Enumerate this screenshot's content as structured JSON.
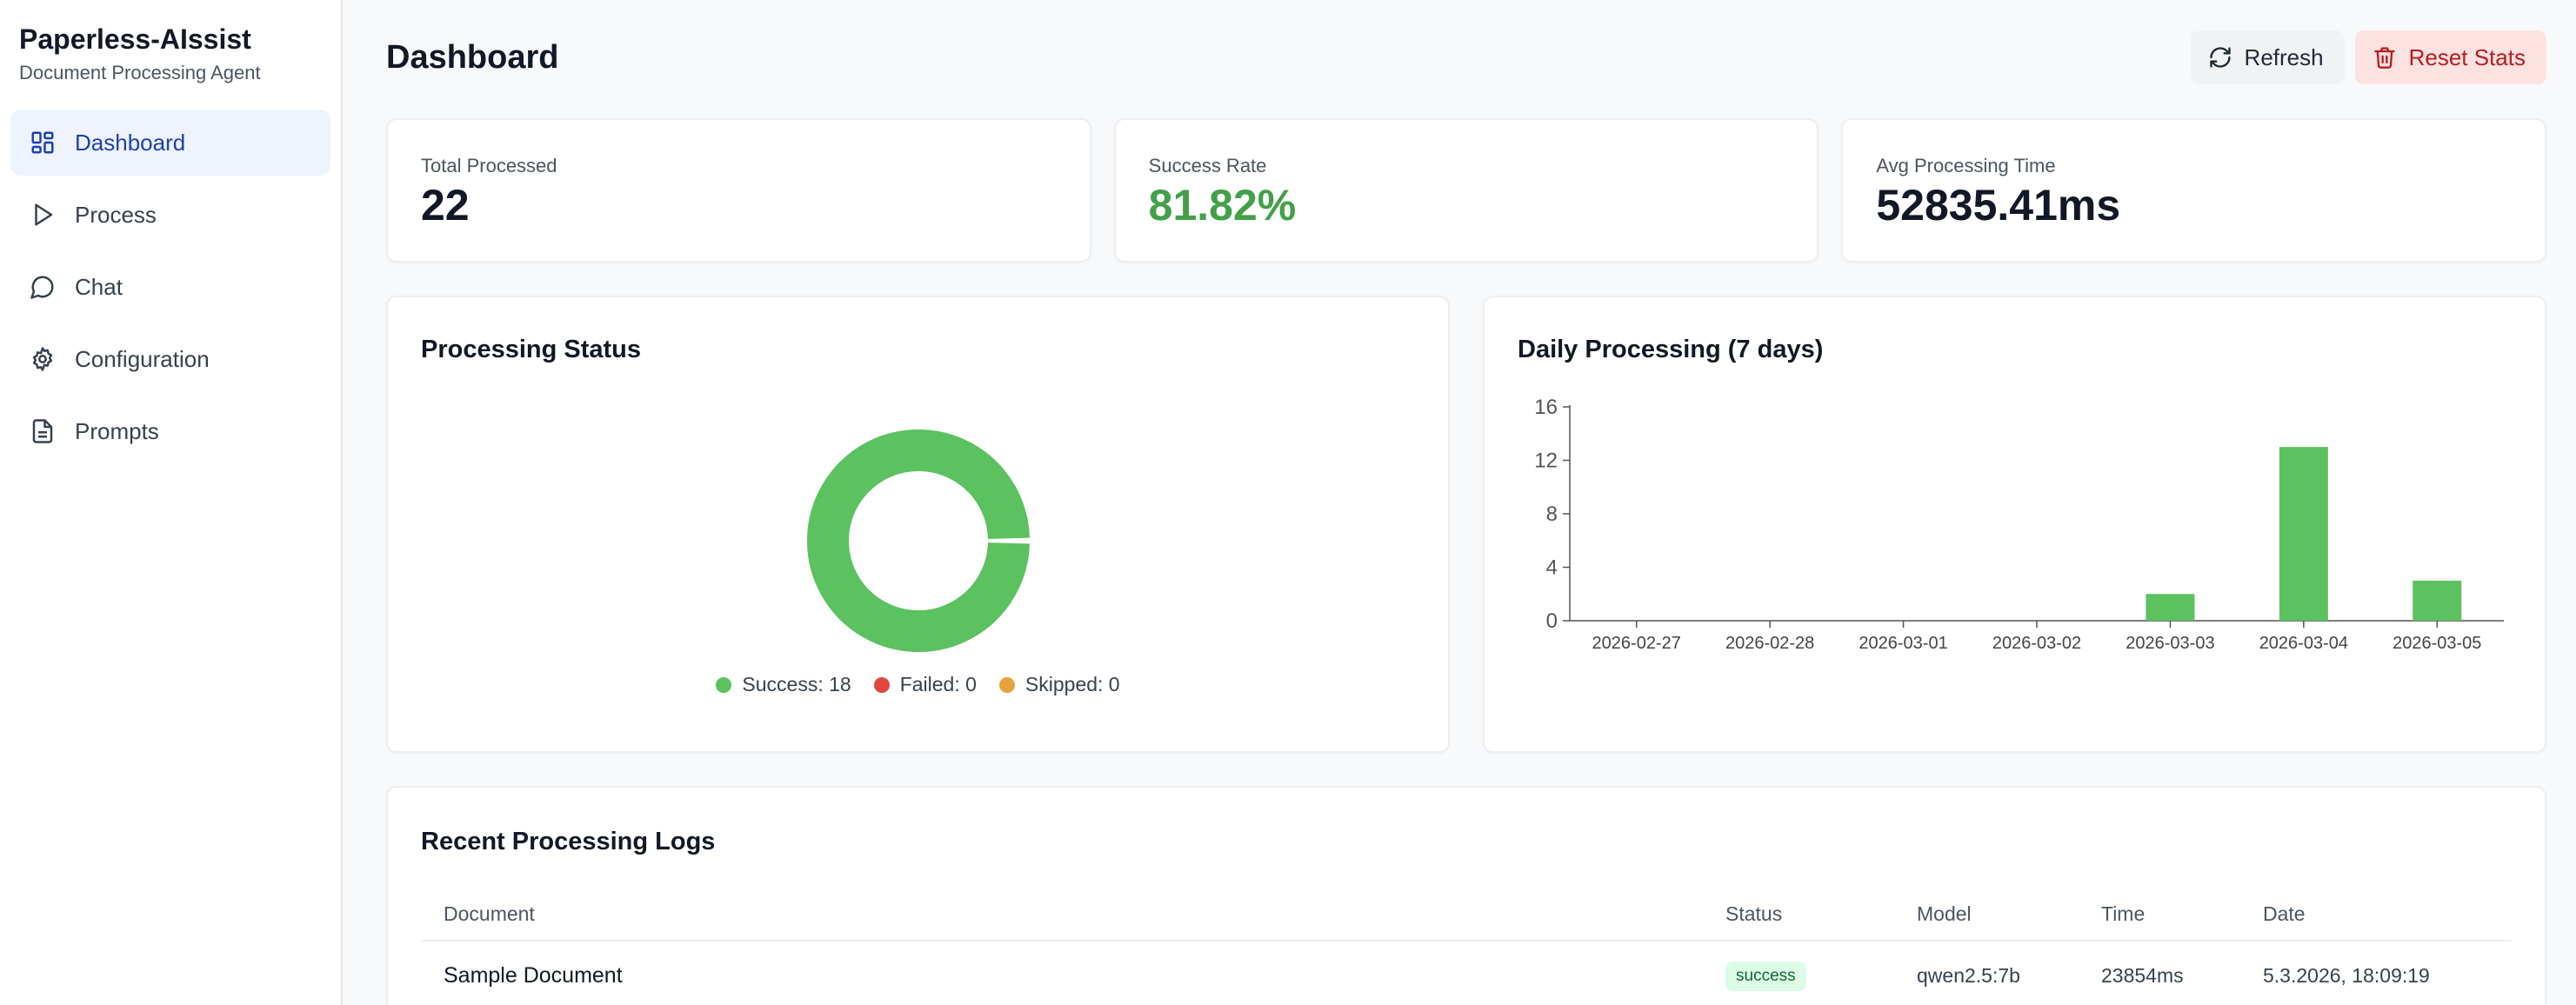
{
  "sidebar": {
    "app_title": "Paperless-AIssist",
    "app_subtitle": "Document Processing Agent",
    "items": [
      {
        "label": "Dashboard",
        "icon": "dashboard-icon",
        "active": true
      },
      {
        "label": "Process",
        "icon": "play-icon",
        "active": false
      },
      {
        "label": "Chat",
        "icon": "chat-icon",
        "active": false
      },
      {
        "label": "Configuration",
        "icon": "gear-icon",
        "active": false
      },
      {
        "label": "Prompts",
        "icon": "document-icon",
        "active": false
      }
    ]
  },
  "header": {
    "title": "Dashboard",
    "refresh_label": "Refresh",
    "reset_label": "Reset Stats"
  },
  "stats": [
    {
      "label": "Total Processed",
      "value": "22"
    },
    {
      "label": "Success Rate",
      "value": "81.82%"
    },
    {
      "label": "Avg Processing Time",
      "value": "52835.41ms"
    }
  ],
  "status_chart": {
    "title": "Processing Status",
    "legend": [
      {
        "label": "Success: 18",
        "color": "#5cc15f"
      },
      {
        "label": "Failed: 0",
        "color": "#e0483d"
      },
      {
        "label": "Skipped: 0",
        "color": "#e9a23b"
      }
    ]
  },
  "daily_chart": {
    "title": "Daily Processing (7 days)"
  },
  "chart_data": [
    {
      "type": "pie",
      "title": "Processing Status",
      "categories": [
        "Success",
        "Failed",
        "Skipped"
      ],
      "values": [
        18,
        0,
        0
      ],
      "colors": [
        "#5cc15f",
        "#e0483d",
        "#e9a23b"
      ],
      "legend": "bottom"
    },
    {
      "type": "bar",
      "title": "Daily Processing (7 days)",
      "categories": [
        "2026-02-27",
        "2026-02-28",
        "2026-03-01",
        "2026-03-02",
        "2026-03-03",
        "2026-03-04",
        "2026-03-05"
      ],
      "values": [
        0,
        0,
        0,
        0,
        2,
        13,
        3
      ],
      "yticks": [
        "0",
        "4",
        "8",
        "12",
        "16"
      ],
      "ylim": [
        0,
        16
      ],
      "color": "#5cc15f",
      "grid": false
    }
  ],
  "logs": {
    "title": "Recent Processing Logs",
    "columns": [
      "Document",
      "Status",
      "Model",
      "Time",
      "Date"
    ],
    "rows": [
      {
        "document": "Sample Document",
        "status": "success",
        "model": "qwen2.5:7b",
        "time": "23854ms",
        "date": "5.3.2026, 18:09:19"
      }
    ]
  }
}
